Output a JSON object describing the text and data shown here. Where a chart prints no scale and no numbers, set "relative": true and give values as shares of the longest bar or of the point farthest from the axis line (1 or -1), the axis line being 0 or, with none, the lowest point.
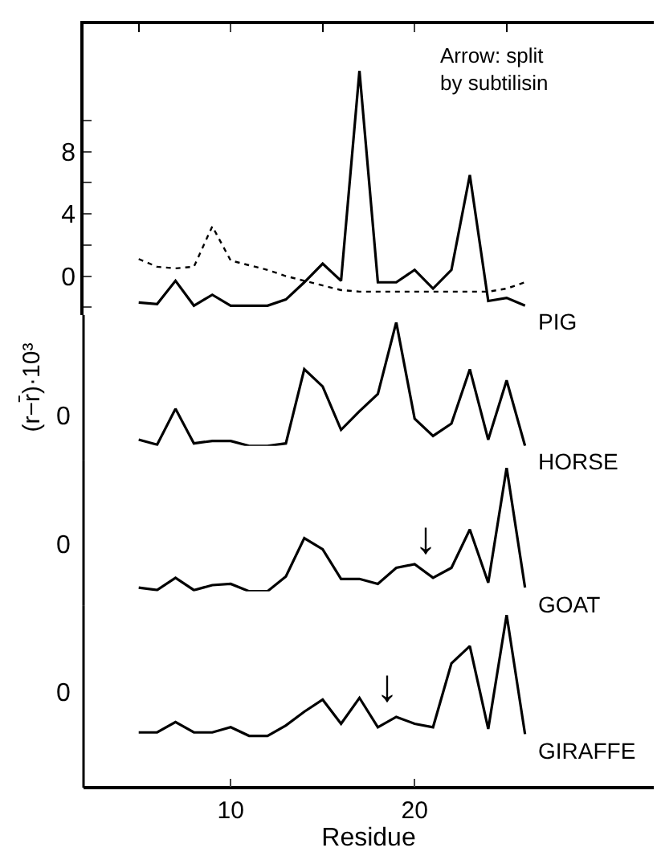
{
  "chart_data": [
    {
      "type": "line",
      "x": [
        5,
        6,
        7,
        8,
        9,
        10,
        11,
        12,
        13,
        14,
        15,
        16,
        17,
        18,
        19,
        20,
        21,
        22,
        23,
        24,
        25,
        26
      ],
      "xlim": [
        2,
        33
      ],
      "xticks": [
        {
          "value": 5,
          "label": null
        },
        10,
        {
          "value": 15,
          "label": null
        },
        20,
        {
          "value": 25,
          "label": null
        }
      ],
      "ylim": [
        -2.5,
        16.2
      ],
      "yticks": [
        {
          "value": -2,
          "label": null
        },
        0,
        {
          "value": 2,
          "label": null
        },
        4,
        {
          "value": 6,
          "label": null
        },
        8,
        {
          "value": 10,
          "label": null
        }
      ],
      "tick_labels": "y",
      "marker": "none",
      "annotations": [
        "Arrow: split\nby subtilisin"
      ],
      "series": [
        {
          "name": "PIG",
          "color": "#000000",
          "line_style": "solid",
          "values": [
            -1.7,
            -1.8,
            -0.3,
            -1.9,
            -1.2,
            -1.9,
            -1.9,
            -1.9,
            -1.5,
            -0.4,
            0.8,
            -0.3,
            13.2,
            -0.4,
            -0.4,
            0.4,
            -0.8,
            0.4,
            6.5,
            -1.6,
            -1.4,
            -1.9
          ]
        },
        {
          "color": "#000000",
          "line_style": "dotted",
          "values": [
            1.1,
            0.6,
            0.5,
            0.6,
            3.2,
            1.0,
            0.7,
            0.4,
            0.0,
            -0.3,
            -0.6,
            -0.9,
            -1.0,
            -1.0,
            -1.0,
            -1.0,
            -1.0,
            -1.0,
            -1.0,
            -1.0,
            -0.8,
            -0.4
          ]
        }
      ]
    },
    {
      "type": "line",
      "x": [
        5,
        6,
        7,
        8,
        9,
        10,
        11,
        12,
        13,
        14,
        15,
        16,
        17,
        18,
        19,
        20,
        21,
        22,
        23,
        24,
        25,
        26
      ],
      "xlim": [
        2,
        33
      ],
      "relative": true,
      "tick_labels": false,
      "marker": "none",
      "ylabel": "(r−r̄)·10³",
      "annotations": [
        "0"
      ],
      "series": [
        {
          "name": "HORSE",
          "color": "#000000",
          "line_style": "solid",
          "values": [
            0.05,
            0.01,
            0.3,
            0.02,
            0.04,
            0.04,
            0,
            0,
            0.02,
            0.62,
            0.48,
            0.13,
            0.28,
            0.42,
            1,
            0.22,
            0.08,
            0.18,
            0.62,
            0.05,
            0.53,
            0
          ]
        }
      ]
    },
    {
      "type": "line",
      "x": [
        5,
        6,
        7,
        8,
        9,
        10,
        11,
        12,
        13,
        14,
        15,
        16,
        17,
        18,
        19,
        20,
        21,
        22,
        23,
        24,
        25,
        26
      ],
      "xlim": [
        2,
        33
      ],
      "relative": true,
      "tick_labels": false,
      "marker": "none",
      "annotations": [
        "0",
        {
          "text": "↓",
          "x": 20.6,
          "y": 0.21
        }
      ],
      "series": [
        {
          "name": "GOAT",
          "color": "#000000",
          "line_style": "solid",
          "values": [
            0.03,
            0.01,
            0.11,
            0.01,
            0.05,
            0.06,
            0,
            0,
            0.12,
            0.43,
            0.34,
            0.1,
            0.1,
            0.06,
            0.19,
            0.22,
            0.11,
            0.19,
            0.5,
            0.07,
            1,
            0.03
          ]
        }
      ]
    },
    {
      "type": "line",
      "x": [
        5,
        6,
        7,
        8,
        9,
        10,
        11,
        12,
        13,
        14,
        15,
        16,
        17,
        18,
        19,
        20,
        21,
        22,
        23,
        24,
        25,
        26
      ],
      "xlim": [
        2,
        33
      ],
      "xticks": [
        10,
        20
      ],
      "relative": true,
      "tick_labels": "x",
      "marker": "none",
      "xlabel": "Residue",
      "annotations": [
        "0",
        {
          "text": "↓",
          "x": 18.5,
          "y": 0.43
        }
      ],
      "series": [
        {
          "name": "GIRAFFE",
          "color": "#000000",
          "line_style": "solid",
          "values": [
            0.32,
            0.32,
            0.38,
            0.32,
            0.32,
            0.35,
            0.3,
            0.3,
            0.36,
            0.44,
            0.51,
            0.37,
            0.52,
            0.35,
            0.41,
            0.37,
            0.35,
            0.72,
            0.82,
            0.34,
            1,
            0.31
          ]
        }
      ]
    }
  ]
}
